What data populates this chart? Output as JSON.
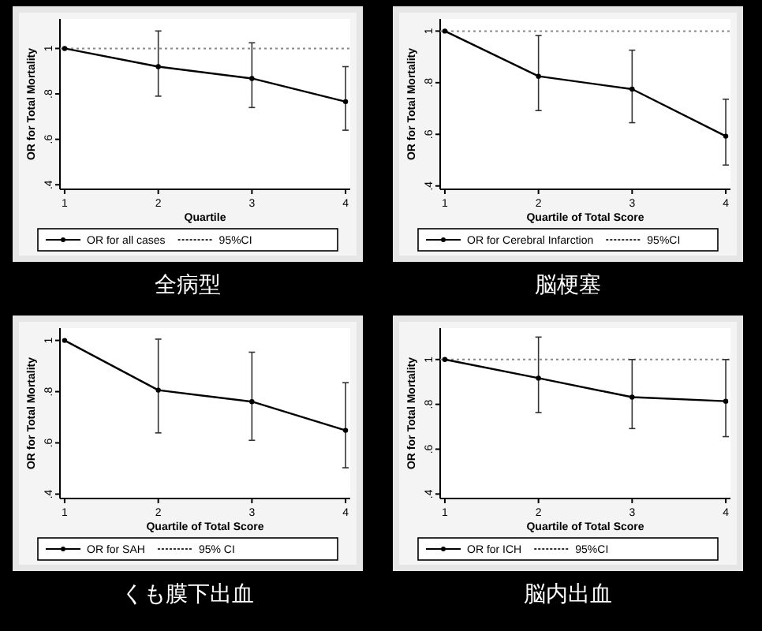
{
  "chart_data": [
    {
      "type": "line",
      "title": "全病型",
      "xlabel": "Quartile",
      "ylabel": "OR for Total Mortality",
      "x": [
        1,
        2,
        3,
        4
      ],
      "xlim": [
        0.95,
        4.05
      ],
      "xticks": [
        1,
        2,
        3,
        4
      ],
      "ylim": [
        0.38,
        1.13
      ],
      "yticks": [
        {
          "value": 0.4,
          "label": ".4"
        },
        {
          "value": 0.6,
          "label": ".6"
        },
        {
          "value": 0.8,
          "label": ".8"
        },
        {
          "value": 1,
          "label": "1"
        }
      ],
      "marker": "circle",
      "line_style": "solid",
      "legend": "bottom",
      "annotations": [
        "95%CI"
      ],
      "ref_lines": [
        {
          "axis": "y",
          "value": 1,
          "color": "#888888",
          "line_style": "dotted"
        }
      ],
      "series": [
        {
          "name": "OR for all cases",
          "color": "#000000",
          "values": [
            1,
            0.92,
            0.868,
            0.766
          ],
          "errors": [
            null,
            [
              0.79,
              1.077
            ],
            [
              0.74,
              1.025
            ],
            [
              0.64,
              0.92
            ]
          ]
        }
      ]
    },
    {
      "type": "line",
      "title": "脳梗塞",
      "xlabel": "Quartile of Total Score",
      "ylabel": "OR for Total Mortality",
      "x": [
        1,
        2,
        3,
        4
      ],
      "xlim": [
        0.95,
        4.05
      ],
      "xticks": [
        1,
        2,
        3,
        4
      ],
      "ylim": [
        0.387,
        1.047
      ],
      "yticks": [
        {
          "value": 0.4,
          "label": ".4"
        },
        {
          "value": 0.6,
          "label": ".6"
        },
        {
          "value": 0.8,
          "label": ".8"
        },
        {
          "value": 1,
          "label": "1"
        }
      ],
      "marker": "circle",
      "line_style": "solid",
      "legend": "bottom",
      "annotations": [
        "95%CI"
      ],
      "ref_lines": [
        {
          "axis": "y",
          "value": 1,
          "color": "#888888",
          "line_style": "dotted"
        }
      ],
      "series": [
        {
          "name": "OR for Cerebral Infarction",
          "color": "#000000",
          "values": [
            1,
            0.825,
            0.775,
            0.593
          ],
          "errors": [
            null,
            [
              0.692,
              0.983
            ],
            [
              0.645,
              0.926
            ],
            [
              0.481,
              0.736
            ]
          ]
        }
      ]
    },
    {
      "type": "line",
      "title": "くも膜下出血",
      "xlabel": "Quartile of Total Score",
      "ylabel": "OR for Total Mortality",
      "x": [
        1,
        2,
        3,
        4
      ],
      "xlim": [
        0.95,
        4.05
      ],
      "xticks": [
        1,
        2,
        3,
        4
      ],
      "ylim": [
        0.383,
        1.048
      ],
      "yticks": [
        {
          "value": 0.4,
          "label": ".4"
        },
        {
          "value": 0.6,
          "label": ".6"
        },
        {
          "value": 0.8,
          "label": ".8"
        },
        {
          "value": 1,
          "label": "1"
        }
      ],
      "marker": "circle",
      "line_style": "solid",
      "legend": "bottom",
      "annotations": [
        "95% CI"
      ],
      "series": [
        {
          "name": "OR for SAH",
          "color": "#000000",
          "values": [
            1,
            0.806,
            0.761,
            0.649
          ],
          "errors": [
            null,
            [
              0.639,
              1.005
            ],
            [
              0.61,
              0.954
            ],
            [
              0.503,
              0.835
            ]
          ]
        }
      ]
    },
    {
      "type": "line",
      "title": "脳内出血",
      "xlabel": "Quartile of Total Score",
      "ylabel": "OR for Total Mortality",
      "x": [
        1,
        2,
        3,
        4
      ],
      "xlim": [
        0.95,
        4.05
      ],
      "xticks": [
        1,
        2,
        3,
        4
      ],
      "ylim": [
        0.38,
        1.14
      ],
      "yticks": [
        {
          "value": 0.4,
          "label": ".4"
        },
        {
          "value": 0.6,
          "label": ".6"
        },
        {
          "value": 0.8,
          "label": ".8"
        },
        {
          "value": 1,
          "label": "1"
        }
      ],
      "marker": "circle",
      "line_style": "solid",
      "legend": "bottom",
      "annotations": [
        "95%CI"
      ],
      "ref_lines": [
        {
          "axis": "y",
          "value": 1,
          "color": "#888888",
          "line_style": "dotted"
        }
      ],
      "series": [
        {
          "name": "OR for ICH",
          "color": "#000000",
          "values": [
            1,
            0.917,
            0.832,
            0.814
          ],
          "errors": [
            null,
            [
              0.763,
              1.1
            ],
            [
              0.692,
              1.0
            ],
            [
              0.656,
              1.0
            ]
          ]
        }
      ]
    }
  ]
}
